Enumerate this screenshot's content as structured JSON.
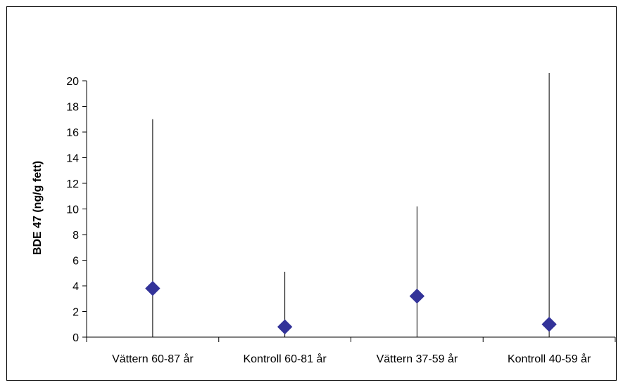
{
  "chart_data": {
    "type": "scatter",
    "title": "",
    "xlabel": "",
    "ylabel": "BDE 47 (ng/g fett)",
    "categories": [
      "Vättern 60-87 år",
      "Kontroll 60-81 år",
      "Vättern 37-59 år",
      "Kontroll 40-59 år"
    ],
    "values": [
      3.8,
      0.8,
      3.2,
      1.0
    ],
    "ranges": [
      [
        0,
        17.0
      ],
      [
        0,
        5.1
      ],
      [
        0,
        10.2
      ],
      [
        0,
        20.6
      ]
    ],
    "ylim": [
      0,
      20
    ],
    "yticks": [
      0,
      2,
      4,
      6,
      8,
      10,
      12,
      14,
      16,
      18,
      20
    ],
    "grid": false,
    "legend": "none",
    "marker": "diamond",
    "colors": {
      "marker": "#333399",
      "line": "#000000"
    }
  }
}
